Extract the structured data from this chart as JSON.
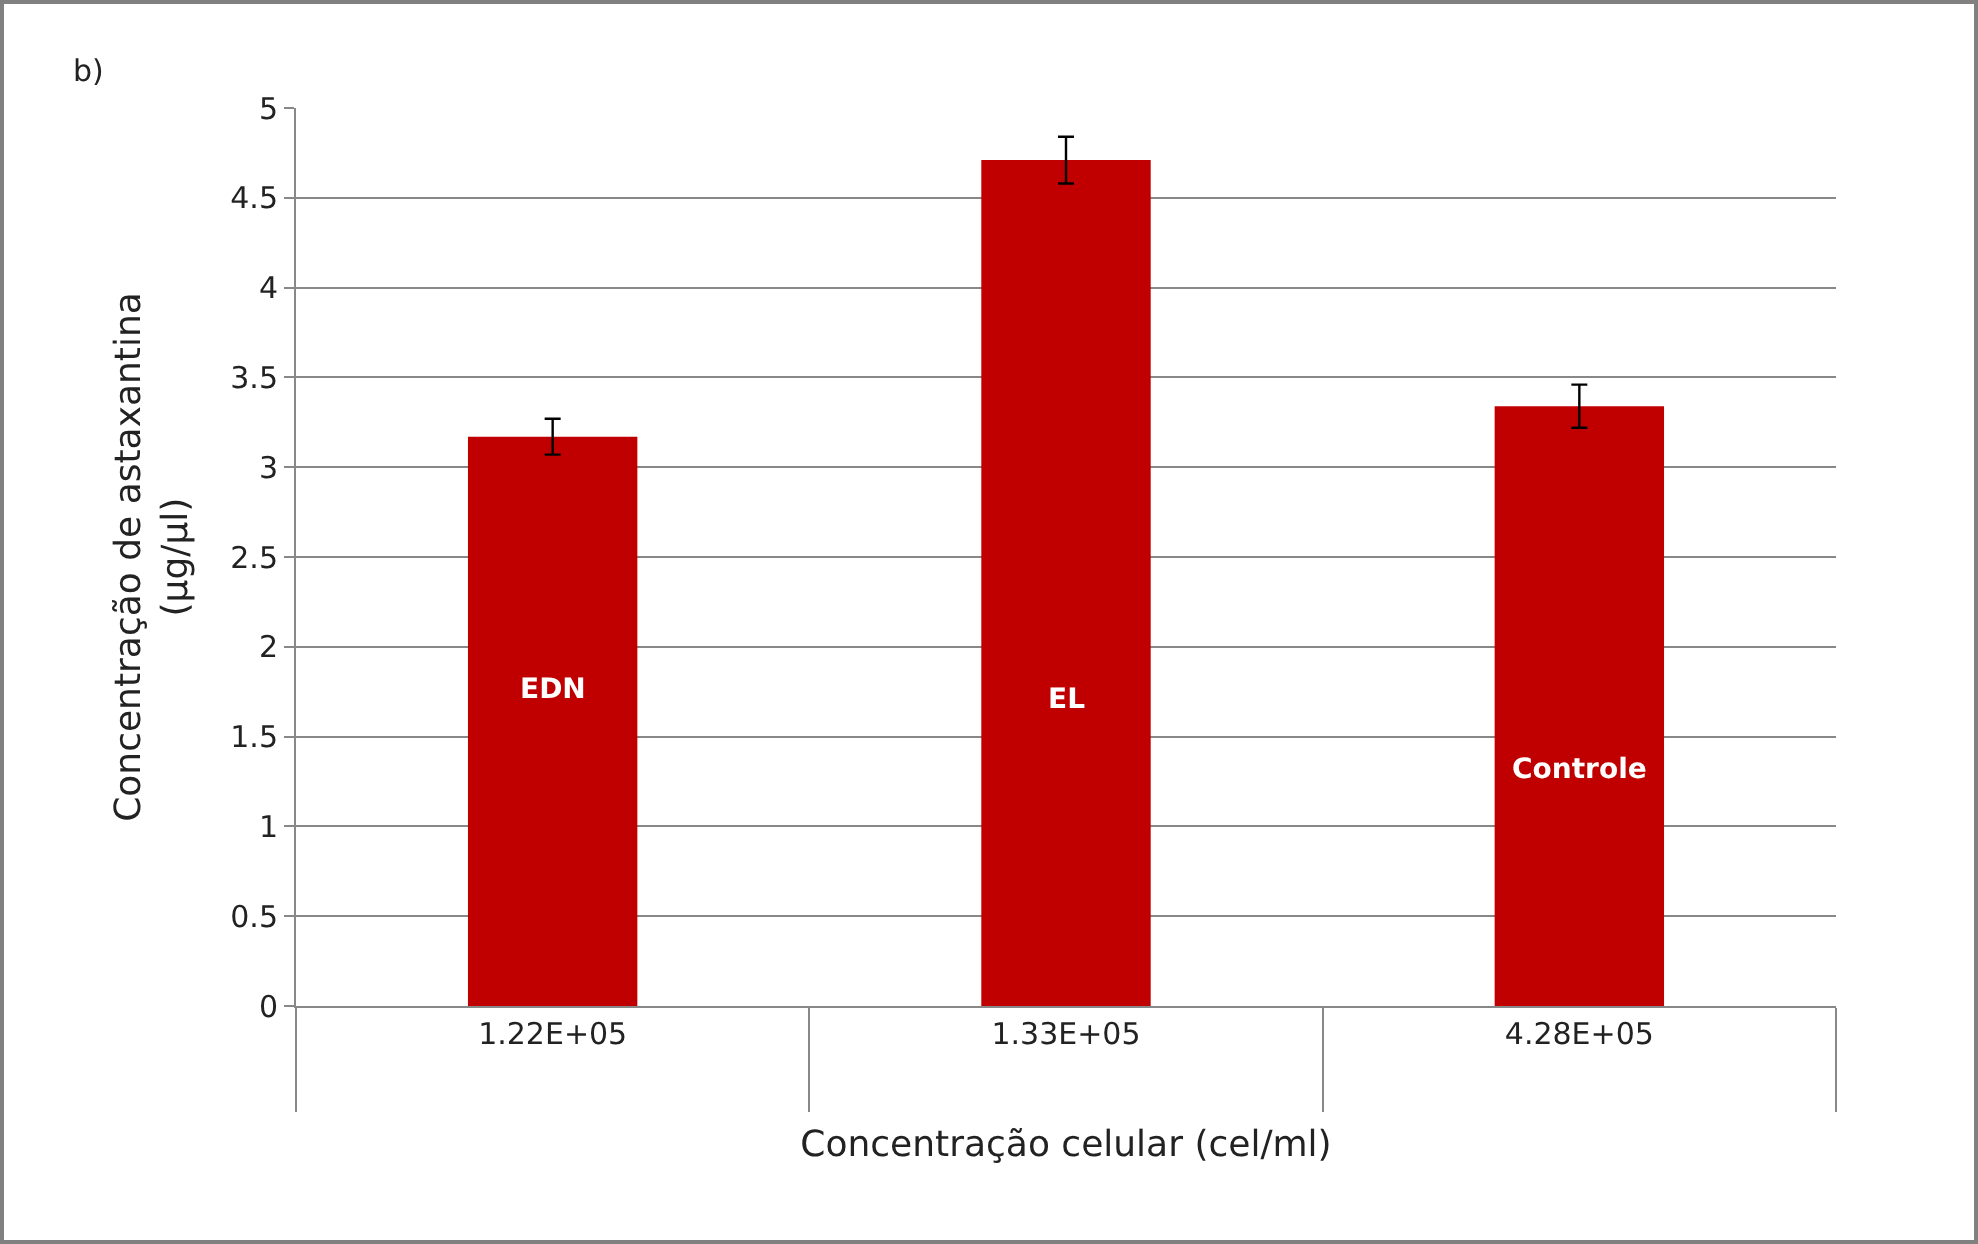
{
  "chart_data": {
    "type": "bar",
    "title": "b)",
    "xlabel": "Concentração celular (cel/ml)",
    "ylabel": "Concentração de astaxantina\n(µg/µl)",
    "categories": [
      "1.22E+05",
      "1.33E+05",
      "4.28E+05"
    ],
    "values": [
      3.17,
      4.71,
      3.34
    ],
    "errors": [
      0.1,
      0.13,
      0.12
    ],
    "color": "#c00000",
    "ylim": [
      0,
      5
    ],
    "yticks": [
      0,
      0.5,
      1,
      1.5,
      2,
      2.5,
      3,
      3.5,
      4,
      4.5,
      5
    ],
    "grid": "y",
    "legend": false,
    "annotations": [
      "EDN",
      "EL",
      "Controle"
    ]
  }
}
